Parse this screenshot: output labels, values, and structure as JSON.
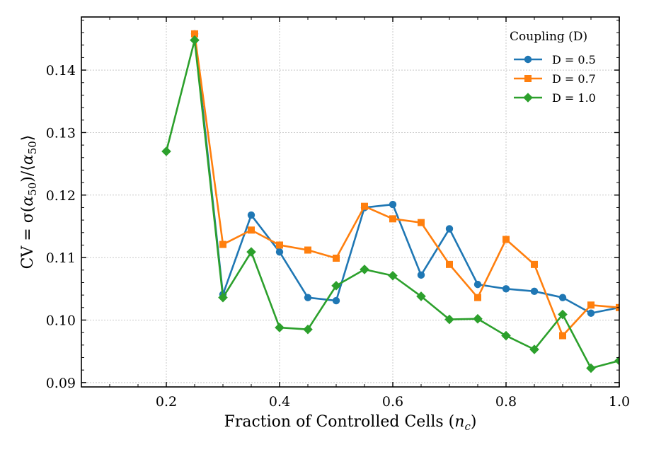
{
  "chart_data": {
    "type": "line",
    "title": "",
    "xlabel": "Fraction of Controlled Cells (n_c)",
    "xlabel_main": "Fraction of Controlled Cells (",
    "xlabel_var": "n",
    "xlabel_sub": "c",
    "xlabel_end": ")",
    "ylabel": "CV = σ(α50)/⟨α50⟩",
    "ylabel_parts": {
      "a": "CV = σ(",
      "b": "α",
      "c": "50",
      "d": ")/⟨",
      "e": "α",
      "f": "50",
      "g": "⟩"
    },
    "xlim": [
      0.05,
      1.0
    ],
    "ylim": [
      0.0893,
      0.1485
    ],
    "xticks": [
      0.2,
      0.4,
      0.6,
      0.8,
      1.0
    ],
    "xtick_labels": [
      "0.2",
      "0.4",
      "0.6",
      "0.8",
      "1.0"
    ],
    "yticks": [
      0.09,
      0.1,
      0.11,
      0.12,
      0.13,
      0.14
    ],
    "ytick_labels": [
      "0.09",
      "0.10",
      "0.11",
      "0.12",
      "0.13",
      "0.14"
    ],
    "grid": true,
    "legend": {
      "title": "Coupling (D)",
      "position": "top-right"
    },
    "series": [
      {
        "name": "D = 0.5",
        "color": "#1f77b4",
        "marker": "circle",
        "x": [
          0.25,
          0.3,
          0.35,
          0.4,
          0.45,
          0.5,
          0.55,
          0.6,
          0.65,
          0.7,
          0.75,
          0.8,
          0.85,
          0.9,
          0.95,
          1.0
        ],
        "values": [
          0.1458,
          0.1041,
          0.1168,
          0.1109,
          0.1036,
          0.1031,
          0.118,
          0.1185,
          0.1072,
          0.1146,
          0.1057,
          0.105,
          0.1046,
          0.1036,
          0.1011,
          0.102
        ]
      },
      {
        "name": "D = 0.7",
        "color": "#ff7f0e",
        "marker": "square",
        "x": [
          0.25,
          0.3,
          0.35,
          0.4,
          0.45,
          0.5,
          0.55,
          0.6,
          0.65,
          0.7,
          0.75,
          0.8,
          0.85,
          0.9,
          0.95,
          1.0
        ],
        "values": [
          0.1458,
          0.1121,
          0.1144,
          0.112,
          0.1112,
          0.1099,
          0.1182,
          0.1162,
          0.1156,
          0.1089,
          0.1036,
          0.1129,
          0.1089,
          0.0975,
          0.1024,
          0.102
        ]
      },
      {
        "name": "D = 1.0",
        "color": "#2ca02c",
        "marker": "diamond",
        "x": [
          0.2,
          0.25,
          0.3,
          0.35,
          0.4,
          0.45,
          0.5,
          0.55,
          0.6,
          0.65,
          0.7,
          0.75,
          0.8,
          0.85,
          0.9,
          0.95,
          1.0
        ],
        "values": [
          0.127,
          0.1448,
          0.1036,
          0.1109,
          0.0988,
          0.0985,
          0.1055,
          0.1081,
          0.1071,
          0.1038,
          0.1001,
          0.1002,
          0.0975,
          0.0953,
          0.1009,
          0.0923,
          0.0935
        ]
      }
    ]
  }
}
